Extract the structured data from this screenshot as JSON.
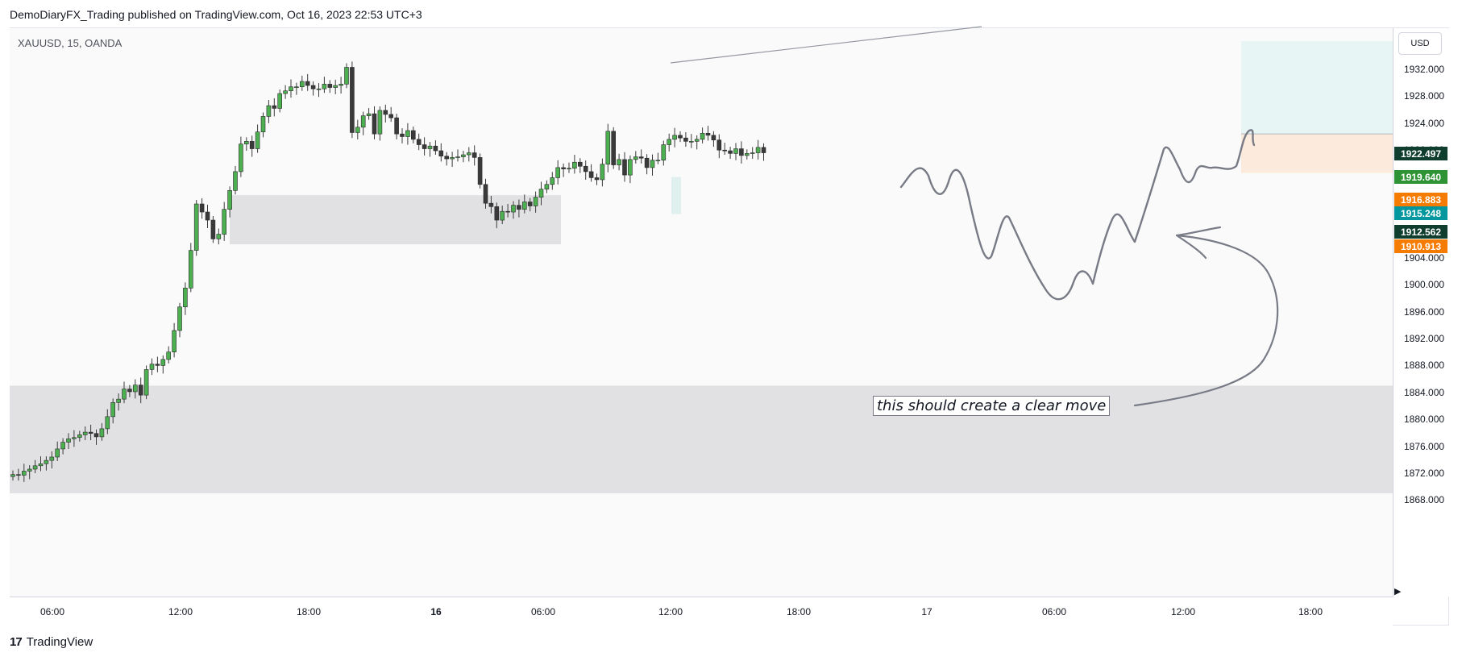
{
  "header": {
    "published": "DemoDiaryFX_Trading published on TradingView.com, Oct 16, 2023 22:53 UTC+3"
  },
  "symbol": {
    "label": "XAUUSD, 15, OANDA"
  },
  "price_axis": {
    "currency": "USD",
    "ticks": [
      "1932.000",
      "1928.000",
      "1924.000",
      "1920.000",
      "1916.000",
      "1912.000",
      "1908.000",
      "1904.000",
      "1900.000",
      "1896.000",
      "1892.000",
      "1888.000",
      "1884.000",
      "1880.000",
      "1876.000",
      "1872.000",
      "1868.000"
    ]
  },
  "badges": [
    {
      "value": "1922.497",
      "color": "#0f3d2e"
    },
    {
      "value": "1919.640",
      "color": "#2e9335"
    },
    {
      "value": "1916.883",
      "color": "#f57c00"
    },
    {
      "value": "1915.248",
      "color": "#00979e"
    },
    {
      "value": "1912.562",
      "color": "#0f3d2e"
    },
    {
      "value": "1910.913",
      "color": "#f57c00"
    }
  ],
  "time_axis": {
    "ticks": [
      {
        "label": "06:00",
        "bold": false
      },
      {
        "label": "12:00",
        "bold": false
      },
      {
        "label": "18:00",
        "bold": false
      },
      {
        "label": "16",
        "bold": true
      },
      {
        "label": "06:00",
        "bold": false
      },
      {
        "label": "12:00",
        "bold": false
      },
      {
        "label": "18:00",
        "bold": false
      },
      {
        "label": "17",
        "bold": false
      },
      {
        "label": "06:00",
        "bold": false
      },
      {
        "label": "12:00",
        "bold": false
      },
      {
        "label": "18:00",
        "bold": false
      }
    ]
  },
  "annotation": {
    "text": "this should create a clear move"
  },
  "footer": {
    "logo": "17",
    "brand": "TradingView"
  },
  "colors": {
    "up": "#4caf50",
    "down": "#3a3a3a",
    "zone": "#e1e1e4",
    "target": "#e7f5f5",
    "stop": "#fcebdc",
    "drawing": "#787b86"
  },
  "chart_data": {
    "type": "candlestick",
    "symbol": "XAUUSD",
    "timeframe": "15",
    "ylim": [
      1866,
      1936
    ],
    "zones": [
      {
        "from": 1906.0,
        "to": 1913.3
      },
      {
        "from": 1869.0,
        "to": 1885.0
      }
    ],
    "position": {
      "entry": 1922.4,
      "target": 1936.2,
      "stop": 1916.6
    },
    "close_series": [
      1871.8,
      1871.7,
      1872.3,
      1872.6,
      1873.1,
      1873.4,
      1873.9,
      1874.4,
      1875.6,
      1876.6,
      1877.1,
      1877.3,
      1877.7,
      1878.1,
      1877.9,
      1877.4,
      1878.6,
      1880.4,
      1882.5,
      1883.0,
      1884.5,
      1884.1,
      1885.1,
      1883.6,
      1887.4,
      1888.2,
      1888.0,
      1888.9,
      1890.0,
      1893.2,
      1896.7,
      1899.5,
      1905.1,
      1912.0,
      1910.8,
      1909.6,
      1906.8,
      1907.5,
      1911.2,
      1914.0,
      1916.8,
      1920.9,
      1921.3,
      1920.2,
      1922.7,
      1925.0,
      1926.6,
      1926.2,
      1928.4,
      1928.8,
      1929.4,
      1929.4,
      1930.2,
      1929.6,
      1929.1,
      1929.1,
      1929.8,
      1929.3,
      1929.6,
      1929.8,
      1932.3,
      1922.6,
      1923.4,
      1925.1,
      1925.4,
      1922.4,
      1925.9,
      1925.3,
      1924.8,
      1922.4,
      1922.0,
      1922.9,
      1921.6,
      1920.8,
      1920.2,
      1920.6,
      1919.9,
      1919.1,
      1918.7,
      1918.9,
      1919.0,
      1919.3,
      1919.6,
      1918.9,
      1914.9,
      1912.1,
      1911.6,
      1909.6,
      1910.9,
      1910.8,
      1911.8,
      1911.2,
      1912.3,
      1911.7,
      1913.0,
      1914.2,
      1914.9,
      1915.9,
      1917.4,
      1917.2,
      1917.3,
      1918.2,
      1917.6,
      1916.8,
      1915.9,
      1915.6,
      1917.9,
      1922.8,
      1917.8,
      1918.6,
      1916.3,
      1918.6,
      1919.0,
      1918.8,
      1917.4,
      1918.5,
      1918.5,
      1920.8,
      1921.6,
      1922.2,
      1921.8,
      1921.3,
      1921.3,
      1921.6,
      1922.5,
      1922.2,
      1921.5,
      1920.0,
      1919.9,
      1919.5,
      1920.2,
      1919.2,
      1919.5,
      1919.6,
      1920.4,
      1919.6
    ],
    "projection_path": "drawn price path projection from ~1919 dipping to ~1904 then rising to ~1924"
  }
}
